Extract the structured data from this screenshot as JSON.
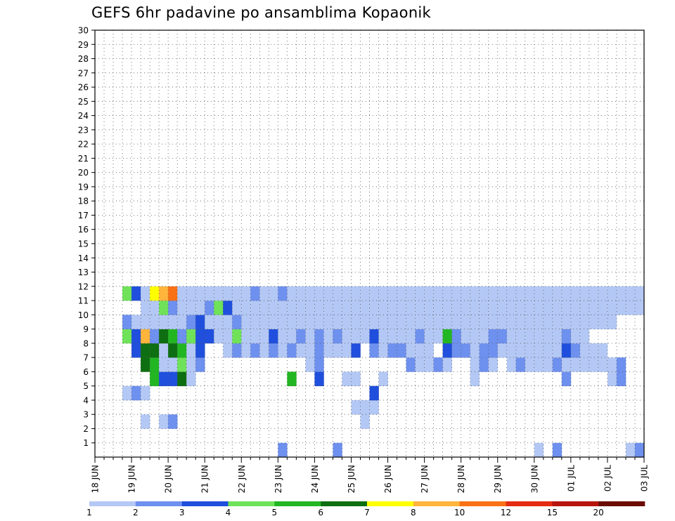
{
  "chart_data": {
    "type": "heatmap",
    "title": "GEFS 6hr padavine po ansamblima Kopaonik",
    "xlabel": "",
    "ylabel": "",
    "x_ticks": [
      "18 JUN",
      "19 JUN",
      "20 JUN",
      "21 JUN",
      "22 JUN",
      "23 JUN",
      "24 JUN",
      "25 JUN",
      "26 JUN",
      "27 JUN",
      "28 JUN",
      "29 JUN",
      "30 JUN",
      "01 JUL",
      "02 JUL",
      "03 JUL"
    ],
    "steps_per_day": 4,
    "time_steps": 60,
    "members": [
      1,
      30
    ],
    "grid": true,
    "legend_placement": "bottom",
    "legend": {
      "levels": [
        1,
        2,
        3,
        4,
        5,
        6,
        7,
        8,
        10,
        12,
        15,
        20
      ],
      "labels": [
        "1",
        "2",
        "3",
        "4",
        "5",
        "6",
        "7",
        "8",
        "10",
        "12",
        "15",
        "20"
      ],
      "colors": [
        "#b4c8f5",
        "#6e90ee",
        "#1f4fdc",
        "#6fe25a",
        "#22b623",
        "#0e6e12",
        "#ffff00",
        "#ffb43c",
        "#f97116",
        "#e42b12",
        "#b7140d",
        "#6b0c07"
      ]
    },
    "cells": [
      [
        1,
        20,
        1
      ],
      [
        1,
        26,
        1
      ],
      [
        1,
        48,
        0
      ],
      [
        1,
        50,
        1
      ],
      [
        1,
        58,
        0
      ],
      [
        1,
        59,
        1
      ],
      [
        3,
        5,
        0
      ],
      [
        3,
        7,
        0
      ],
      [
        3,
        8,
        1
      ],
      [
        3,
        29,
        0
      ],
      [
        4,
        28,
        0
      ],
      [
        4,
        29,
        0
      ],
      [
        4,
        30,
        0
      ],
      [
        5,
        3,
        0
      ],
      [
        5,
        4,
        1
      ],
      [
        5,
        5,
        0
      ],
      [
        5,
        30,
        2
      ],
      [
        6,
        6,
        4
      ],
      [
        6,
        7,
        2
      ],
      [
        6,
        8,
        2
      ],
      [
        6,
        9,
        5
      ],
      [
        6,
        10,
        0
      ],
      [
        6,
        21,
        4
      ],
      [
        6,
        24,
        2
      ],
      [
        6,
        27,
        0
      ],
      [
        6,
        28,
        0
      ],
      [
        6,
        31,
        0
      ],
      [
        6,
        41,
        0
      ],
      [
        6,
        51,
        1
      ],
      [
        6,
        56,
        0
      ],
      [
        6,
        57,
        1
      ],
      [
        7,
        5,
        5
      ],
      [
        7,
        6,
        4
      ],
      [
        7,
        7,
        0
      ],
      [
        7,
        8,
        0
      ],
      [
        7,
        9,
        3
      ],
      [
        7,
        10,
        0
      ],
      [
        7,
        11,
        1
      ],
      [
        7,
        23,
        0
      ],
      [
        7,
        24,
        1
      ],
      [
        7,
        34,
        1
      ],
      [
        7,
        35,
        0
      ],
      [
        7,
        36,
        0
      ],
      [
        7,
        37,
        1
      ],
      [
        7,
        38,
        0
      ],
      [
        7,
        41,
        0
      ],
      [
        7,
        42,
        1
      ],
      [
        7,
        43,
        0
      ],
      [
        7,
        45,
        0
      ],
      [
        7,
        46,
        1
      ],
      [
        7,
        47,
        0
      ],
      [
        7,
        48,
        0
      ],
      [
        7,
        49,
        0
      ],
      [
        7,
        50,
        1
      ],
      [
        7,
        51,
        0
      ],
      [
        7,
        52,
        0
      ],
      [
        7,
        53,
        0
      ],
      [
        7,
        54,
        0
      ],
      [
        7,
        55,
        0
      ],
      [
        7,
        56,
        0
      ],
      [
        7,
        57,
        1
      ],
      [
        8,
        4,
        2
      ],
      [
        8,
        5,
        5
      ],
      [
        8,
        6,
        5
      ],
      [
        8,
        7,
        0
      ],
      [
        8,
        8,
        5
      ],
      [
        8,
        9,
        4
      ],
      [
        8,
        10,
        0
      ],
      [
        8,
        11,
        2
      ],
      [
        8,
        14,
        0
      ],
      [
        8,
        15,
        1
      ],
      [
        8,
        16,
        0
      ],
      [
        8,
        17,
        1
      ],
      [
        8,
        18,
        0
      ],
      [
        8,
        19,
        1
      ],
      [
        8,
        20,
        0
      ],
      [
        8,
        21,
        1
      ],
      [
        8,
        22,
        0
      ],
      [
        8,
        23,
        0
      ],
      [
        8,
        24,
        1
      ],
      [
        8,
        25,
        0
      ],
      [
        8,
        26,
        0
      ],
      [
        8,
        27,
        0
      ],
      [
        8,
        28,
        2
      ],
      [
        8,
        30,
        1
      ],
      [
        8,
        31,
        0
      ],
      [
        8,
        32,
        1
      ],
      [
        8,
        33,
        1
      ],
      [
        8,
        34,
        0
      ],
      [
        8,
        35,
        0
      ],
      [
        8,
        36,
        0
      ],
      [
        8,
        38,
        2
      ],
      [
        8,
        39,
        1
      ],
      [
        8,
        40,
        1
      ],
      [
        8,
        41,
        0
      ],
      [
        8,
        42,
        1
      ],
      [
        8,
        43,
        1
      ],
      [
        8,
        44,
        0
      ],
      [
        8,
        45,
        0
      ],
      [
        8,
        46,
        0
      ],
      [
        8,
        47,
        0
      ],
      [
        8,
        48,
        0
      ],
      [
        8,
        49,
        0
      ],
      [
        8,
        50,
        0
      ],
      [
        8,
        51,
        2
      ],
      [
        8,
        52,
        1
      ],
      [
        8,
        53,
        0
      ],
      [
        8,
        54,
        0
      ],
      [
        8,
        55,
        0
      ],
      [
        9,
        3,
        3
      ],
      [
        9,
        4,
        2
      ],
      [
        9,
        5,
        7
      ],
      [
        9,
        6,
        1
      ],
      [
        9,
        7,
        5
      ],
      [
        9,
        8,
        4
      ],
      [
        9,
        9,
        1
      ],
      [
        9,
        10,
        3
      ],
      [
        9,
        11,
        2
      ],
      [
        9,
        12,
        2
      ],
      [
        9,
        13,
        0
      ],
      [
        9,
        14,
        0
      ],
      [
        9,
        15,
        3
      ],
      [
        9,
        16,
        0
      ],
      [
        9,
        17,
        0
      ],
      [
        9,
        18,
        0
      ],
      [
        9,
        19,
        2
      ],
      [
        9,
        20,
        0
      ],
      [
        9,
        21,
        0
      ],
      [
        9,
        22,
        1
      ],
      [
        9,
        23,
        0
      ],
      [
        9,
        24,
        1
      ],
      [
        9,
        25,
        0
      ],
      [
        9,
        26,
        1
      ],
      [
        9,
        27,
        0
      ],
      [
        9,
        28,
        0
      ],
      [
        9,
        29,
        0
      ],
      [
        9,
        30,
        2
      ],
      [
        9,
        31,
        0
      ],
      [
        9,
        32,
        0
      ],
      [
        9,
        33,
        0
      ],
      [
        9,
        34,
        0
      ],
      [
        9,
        35,
        1
      ],
      [
        9,
        36,
        0
      ],
      [
        9,
        37,
        0
      ],
      [
        9,
        38,
        4
      ],
      [
        9,
        39,
        1
      ],
      [
        9,
        40,
        0
      ],
      [
        9,
        41,
        0
      ],
      [
        9,
        42,
        0
      ],
      [
        9,
        43,
        1
      ],
      [
        9,
        44,
        1
      ],
      [
        9,
        45,
        0
      ],
      [
        9,
        46,
        0
      ],
      [
        9,
        47,
        0
      ],
      [
        9,
        48,
        0
      ],
      [
        9,
        49,
        0
      ],
      [
        9,
        50,
        0
      ],
      [
        9,
        51,
        1
      ],
      [
        9,
        52,
        0
      ],
      [
        9,
        53,
        0
      ],
      [
        10,
        3,
        1
      ],
      [
        10,
        4,
        0
      ],
      [
        10,
        5,
        0
      ],
      [
        10,
        6,
        0
      ],
      [
        10,
        7,
        0
      ],
      [
        10,
        8,
        0
      ],
      [
        10,
        9,
        0
      ],
      [
        10,
        10,
        1
      ],
      [
        10,
        11,
        2
      ],
      [
        10,
        12,
        0
      ],
      [
        10,
        13,
        0
      ],
      [
        10,
        14,
        0
      ],
      [
        10,
        15,
        1
      ],
      [
        10,
        16,
        0
      ],
      [
        10,
        17,
        0
      ],
      [
        10,
        18,
        0
      ],
      [
        10,
        19,
        0
      ],
      [
        10,
        20,
        0
      ],
      [
        10,
        21,
        0
      ],
      [
        10,
        22,
        0
      ],
      [
        10,
        23,
        0
      ],
      [
        10,
        24,
        0
      ],
      [
        10,
        25,
        0
      ],
      [
        10,
        26,
        0
      ],
      [
        10,
        27,
        0
      ],
      [
        10,
        28,
        0
      ],
      [
        10,
        29,
        0
      ],
      [
        10,
        30,
        0
      ],
      [
        10,
        31,
        0
      ],
      [
        10,
        32,
        0
      ],
      [
        10,
        33,
        0
      ],
      [
        10,
        34,
        0
      ],
      [
        10,
        35,
        0
      ],
      [
        10,
        36,
        0
      ],
      [
        10,
        37,
        0
      ],
      [
        10,
        38,
        0
      ],
      [
        10,
        39,
        0
      ],
      [
        10,
        40,
        0
      ],
      [
        10,
        41,
        0
      ],
      [
        10,
        42,
        0
      ],
      [
        10,
        43,
        0
      ],
      [
        10,
        44,
        0
      ],
      [
        10,
        45,
        0
      ],
      [
        10,
        46,
        0
      ],
      [
        10,
        47,
        0
      ],
      [
        10,
        48,
        0
      ],
      [
        10,
        49,
        0
      ],
      [
        10,
        50,
        0
      ],
      [
        10,
        51,
        0
      ],
      [
        10,
        52,
        0
      ],
      [
        10,
        53,
        0
      ],
      [
        10,
        54,
        0
      ],
      [
        10,
        55,
        0
      ],
      [
        10,
        56,
        0
      ],
      [
        11,
        5,
        0
      ],
      [
        11,
        6,
        0
      ],
      [
        11,
        7,
        3
      ],
      [
        11,
        8,
        1
      ],
      [
        11,
        9,
        0
      ],
      [
        11,
        10,
        0
      ],
      [
        11,
        11,
        0
      ],
      [
        11,
        12,
        1
      ],
      [
        11,
        13,
        3
      ],
      [
        11,
        14,
        2
      ],
      [
        11,
        15,
        0
      ],
      [
        11,
        16,
        0
      ],
      [
        11,
        17,
        0
      ],
      [
        11,
        18,
        0
      ],
      [
        11,
        19,
        0
      ],
      [
        11,
        20,
        0
      ],
      [
        11,
        21,
        0
      ],
      [
        11,
        22,
        0
      ],
      [
        11,
        23,
        0
      ],
      [
        11,
        24,
        0
      ],
      [
        11,
        25,
        0
      ],
      [
        11,
        26,
        0
      ],
      [
        11,
        27,
        0
      ],
      [
        11,
        28,
        0
      ],
      [
        11,
        29,
        0
      ],
      [
        11,
        30,
        0
      ],
      [
        11,
        31,
        0
      ],
      [
        11,
        32,
        0
      ],
      [
        11,
        33,
        0
      ],
      [
        11,
        34,
        0
      ],
      [
        11,
        35,
        0
      ],
      [
        11,
        36,
        0
      ],
      [
        11,
        37,
        0
      ],
      [
        11,
        38,
        0
      ],
      [
        11,
        39,
        0
      ],
      [
        11,
        40,
        0
      ],
      [
        11,
        41,
        0
      ],
      [
        11,
        42,
        0
      ],
      [
        11,
        43,
        0
      ],
      [
        11,
        44,
        0
      ],
      [
        11,
        45,
        0
      ],
      [
        11,
        46,
        0
      ],
      [
        11,
        47,
        0
      ],
      [
        11,
        48,
        0
      ],
      [
        11,
        49,
        0
      ],
      [
        11,
        50,
        0
      ],
      [
        11,
        51,
        0
      ],
      [
        11,
        52,
        0
      ],
      [
        11,
        53,
        0
      ],
      [
        11,
        54,
        0
      ],
      [
        11,
        55,
        0
      ],
      [
        11,
        56,
        0
      ],
      [
        11,
        57,
        0
      ],
      [
        11,
        58,
        0
      ],
      [
        11,
        59,
        0
      ],
      [
        12,
        3,
        3
      ],
      [
        12,
        4,
        2
      ],
      [
        12,
        5,
        0
      ],
      [
        12,
        6,
        6
      ],
      [
        12,
        7,
        7
      ],
      [
        12,
        8,
        8
      ],
      [
        12,
        9,
        0
      ],
      [
        12,
        10,
        0
      ],
      [
        12,
        11,
        0
      ],
      [
        12,
        12,
        0
      ],
      [
        12,
        13,
        0
      ],
      [
        12,
        14,
        0
      ],
      [
        12,
        15,
        0
      ],
      [
        12,
        16,
        0
      ],
      [
        12,
        17,
        1
      ],
      [
        12,
        18,
        0
      ],
      [
        12,
        19,
        0
      ],
      [
        12,
        20,
        1
      ],
      [
        12,
        21,
        0
      ],
      [
        12,
        22,
        0
      ],
      [
        12,
        23,
        0
      ],
      [
        12,
        24,
        0
      ],
      [
        12,
        25,
        0
      ],
      [
        12,
        26,
        0
      ],
      [
        12,
        27,
        0
      ],
      [
        12,
        28,
        0
      ],
      [
        12,
        29,
        0
      ],
      [
        12,
        30,
        0
      ],
      [
        12,
        31,
        0
      ],
      [
        12,
        32,
        0
      ],
      [
        12,
        33,
        0
      ],
      [
        12,
        34,
        0
      ],
      [
        12,
        35,
        0
      ],
      [
        12,
        36,
        0
      ],
      [
        12,
        37,
        0
      ],
      [
        12,
        38,
        0
      ],
      [
        12,
        39,
        0
      ],
      [
        12,
        40,
        0
      ],
      [
        12,
        41,
        0
      ],
      [
        12,
        42,
        0
      ],
      [
        12,
        43,
        0
      ],
      [
        12,
        44,
        0
      ],
      [
        12,
        45,
        0
      ],
      [
        12,
        46,
        0
      ],
      [
        12,
        47,
        0
      ],
      [
        12,
        48,
        0
      ],
      [
        12,
        49,
        0
      ],
      [
        12,
        50,
        0
      ],
      [
        12,
        51,
        0
      ],
      [
        12,
        52,
        0
      ],
      [
        12,
        53,
        0
      ],
      [
        12,
        54,
        0
      ],
      [
        12,
        55,
        0
      ],
      [
        12,
        56,
        0
      ],
      [
        12,
        57,
        0
      ],
      [
        12,
        58,
        0
      ],
      [
        12,
        59,
        0
      ]
    ],
    "cells_note": ""
  }
}
